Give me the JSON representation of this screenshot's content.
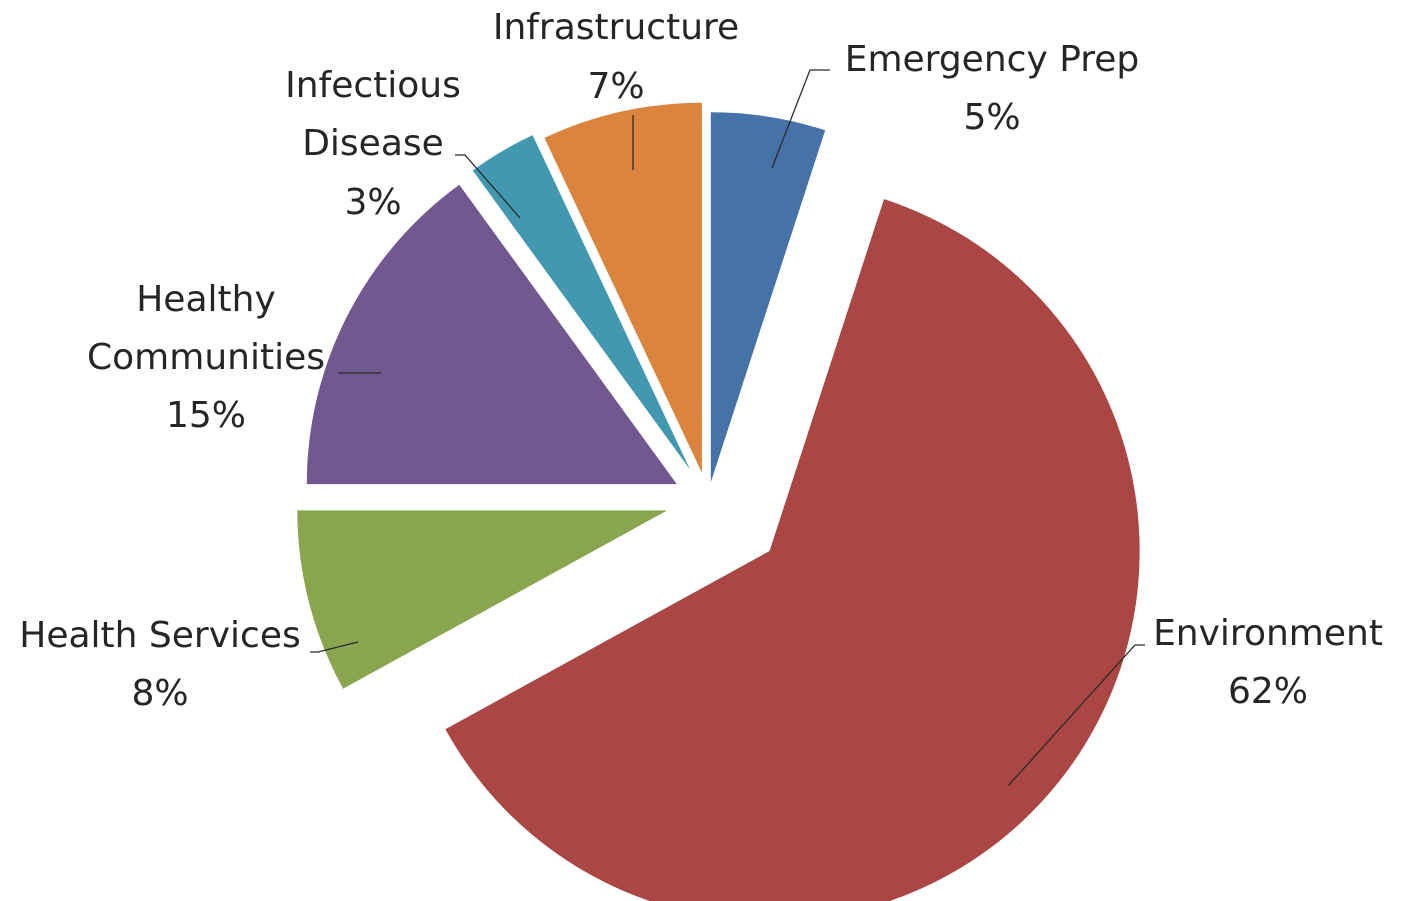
{
  "chart_data": {
    "type": "pie",
    "exploded": true,
    "legend": "none",
    "slices": [
      {
        "name": "Emergency Prep",
        "value": 5,
        "label": "5%",
        "color": "#4572A7"
      },
      {
        "name": "Environment",
        "value": 62,
        "label": "62%",
        "color": "#AA4643"
      },
      {
        "name": "Health Services",
        "value": 8,
        "label": "8%",
        "color": "#89A54E"
      },
      {
        "name": "Healthy Communities",
        "value": 15,
        "label": "15%",
        "color": "#71588F"
      },
      {
        "name": "Infectious Disease",
        "value": 3,
        "label": "3%",
        "color": "#4198AF"
      },
      {
        "name": "Infrastructure",
        "value": 7,
        "label": "7%",
        "color": "#DB843D"
      }
    ]
  }
}
